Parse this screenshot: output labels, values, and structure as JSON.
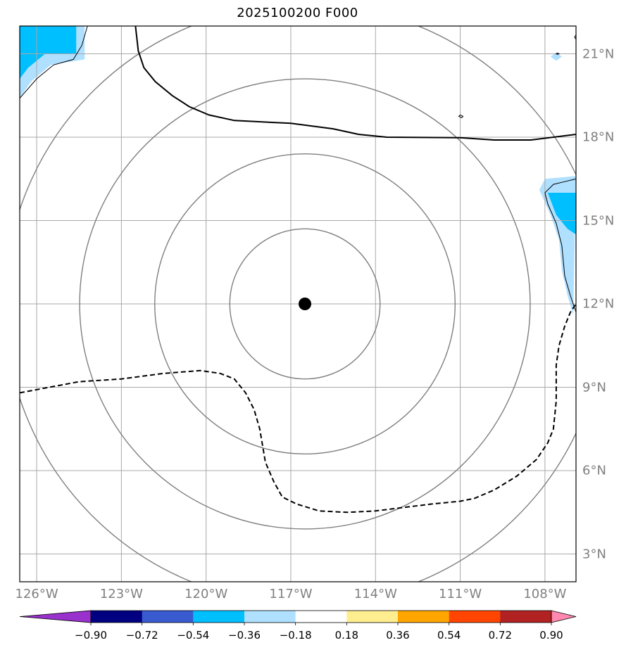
{
  "title": "2025100200 F000",
  "center": {
    "lon": -116.5,
    "lat": 12.0
  },
  "map_extent": {
    "lon_min": -126.6,
    "lon_max": -106.9,
    "lat_min": 2.0,
    "lat_max": 22.0
  },
  "lon_ticks": [
    {
      "value": -126,
      "label": "126°W"
    },
    {
      "value": -123,
      "label": "123°W"
    },
    {
      "value": -120,
      "label": "120°W"
    },
    {
      "value": -117,
      "label": "117°W"
    },
    {
      "value": -114,
      "label": "114°W"
    },
    {
      "value": -111,
      "label": "111°W"
    },
    {
      "value": -108,
      "label": "108°W"
    }
  ],
  "lat_ticks": [
    {
      "value": 21,
      "label": "21°N"
    },
    {
      "value": 18,
      "label": "18°N"
    },
    {
      "value": 15,
      "label": "15°N"
    },
    {
      "value": 12,
      "label": "12°N"
    },
    {
      "value": 9,
      "label": "9°N"
    },
    {
      "value": 6,
      "label": "6°N"
    },
    {
      "value": 3,
      "label": "3°N"
    }
  ],
  "range_ring_radii_deg": [
    2.7,
    5.4,
    8.1,
    10.8
  ],
  "solid_contour": [
    [
      -122.5,
      22.0
    ],
    [
      -122.4,
      21.1
    ],
    [
      -122.2,
      20.5
    ],
    [
      -121.8,
      20.0
    ],
    [
      -121.2,
      19.5
    ],
    [
      -120.6,
      19.1
    ],
    [
      -119.9,
      18.8
    ],
    [
      -119.0,
      18.6
    ],
    [
      -117.0,
      18.5
    ],
    [
      -115.5,
      18.3
    ],
    [
      -114.6,
      18.1
    ],
    [
      -113.6,
      18.0
    ],
    [
      -111.0,
      17.98
    ],
    [
      -109.8,
      17.9
    ],
    [
      -108.5,
      17.9
    ],
    [
      -106.9,
      18.1
    ]
  ],
  "dashed_contour": [
    [
      -126.6,
      8.8
    ],
    [
      -124.5,
      9.2
    ],
    [
      -123.0,
      9.3
    ],
    [
      -121.5,
      9.5
    ],
    [
      -120.2,
      9.6
    ],
    [
      -119.5,
      9.5
    ],
    [
      -119.0,
      9.3
    ],
    [
      -118.6,
      8.8
    ],
    [
      -118.3,
      8.2
    ],
    [
      -118.1,
      7.5
    ],
    [
      -117.9,
      6.3
    ],
    [
      -117.6,
      5.6
    ],
    [
      -117.3,
      5.05
    ],
    [
      -116.8,
      4.8
    ],
    [
      -116.0,
      4.55
    ],
    [
      -115.0,
      4.5
    ],
    [
      -114.0,
      4.55
    ],
    [
      -112.0,
      4.8
    ],
    [
      -111.0,
      4.9
    ],
    [
      -110.5,
      5.0
    ],
    [
      -109.8,
      5.3
    ],
    [
      -109.0,
      5.8
    ],
    [
      -108.3,
      6.4
    ],
    [
      -107.9,
      7.0
    ],
    [
      -107.7,
      7.5
    ],
    [
      -107.6,
      8.5
    ],
    [
      -107.6,
      9.8
    ],
    [
      -107.5,
      10.5
    ],
    [
      -107.3,
      11.2
    ],
    [
      -107.1,
      11.7
    ],
    [
      -106.9,
      12.0
    ]
  ],
  "land_outlines": [
    [
      [
        -126.6,
        19.4
      ],
      [
        -126.0,
        20.1
      ],
      [
        -125.4,
        20.6
      ],
      [
        -124.7,
        20.8
      ],
      [
        -124.4,
        21.3
      ],
      [
        -124.2,
        22.0
      ]
    ],
    [
      [
        -106.9,
        11.7
      ],
      [
        -107.1,
        12.3
      ],
      [
        -107.3,
        13.0
      ],
      [
        -107.4,
        14.1
      ],
      [
        -107.6,
        14.9
      ],
      [
        -107.9,
        15.6
      ],
      [
        -108.0,
        16.0
      ],
      [
        -107.7,
        16.3
      ],
      [
        -107.3,
        16.4
      ],
      [
        -106.9,
        16.5
      ]
    ]
  ],
  "shaded_regions": [
    {
      "color": "#b0e0ff",
      "points": [
        [
          -126.6,
          19.4
        ],
        [
          -126.6,
          22.0
        ],
        [
          -124.3,
          22.0
        ],
        [
          -124.3,
          20.8
        ],
        [
          -125.5,
          20.6
        ],
        [
          -126.2,
          20.0
        ]
      ]
    },
    {
      "color": "#00bfff",
      "points": [
        [
          -126.6,
          20.1
        ],
        [
          -126.6,
          22.0
        ],
        [
          -124.6,
          22.0
        ],
        [
          -124.6,
          21.0
        ],
        [
          -125.7,
          21.0
        ],
        [
          -126.3,
          20.5
        ]
      ]
    },
    {
      "color": "#b0e0ff",
      "points": [
        [
          -107.0,
          11.6
        ],
        [
          -107.2,
          12.3
        ],
        [
          -107.4,
          13.2
        ],
        [
          -107.5,
          14.3
        ],
        [
          -107.8,
          15.2
        ],
        [
          -108.2,
          16.1
        ],
        [
          -108.0,
          16.5
        ],
        [
          -106.9,
          16.6
        ]
      ]
    },
    {
      "color": "#00bfff",
      "points": [
        [
          -107.9,
          16.0
        ],
        [
          -107.6,
          15.2
        ],
        [
          -107.2,
          14.7
        ],
        [
          -106.9,
          14.5
        ],
        [
          -106.9,
          16.0
        ]
      ]
    },
    {
      "color": "#b0e0ff",
      "points": [
        [
          -107.8,
          20.9
        ],
        [
          -107.6,
          21.05
        ],
        [
          -107.4,
          20.9
        ],
        [
          -107.6,
          20.75
        ]
      ]
    }
  ],
  "islets": [
    [
      [
        -107.6,
        21.0
      ],
      [
        -107.55,
        21.03
      ],
      [
        -107.5,
        21.0
      ],
      [
        -107.55,
        20.98
      ]
    ],
    [
      [
        -106.95,
        21.6
      ],
      [
        -106.9,
        21.68
      ],
      [
        -106.85,
        21.6
      ],
      [
        -106.9,
        21.52
      ]
    ],
    [
      [
        -111.0,
        18.8
      ],
      [
        -110.9,
        18.75
      ],
      [
        -110.95,
        18.7
      ],
      [
        -111.05,
        18.75
      ]
    ]
  ],
  "colorbar": {
    "ticks": [
      "−0.90",
      "−0.72",
      "−0.54",
      "−0.36",
      "−0.18",
      "0.18",
      "0.36",
      "0.54",
      "0.72",
      "0.90"
    ],
    "under_color": "#9932cc",
    "over_color": "#ff88b0",
    "colors": [
      "#000080",
      "#3a5bd0",
      "#00bfff",
      "#b0e0ff",
      "#ffffff",
      "#ffee90",
      "#ffa500",
      "#ff4500",
      "#b22222"
    ]
  }
}
